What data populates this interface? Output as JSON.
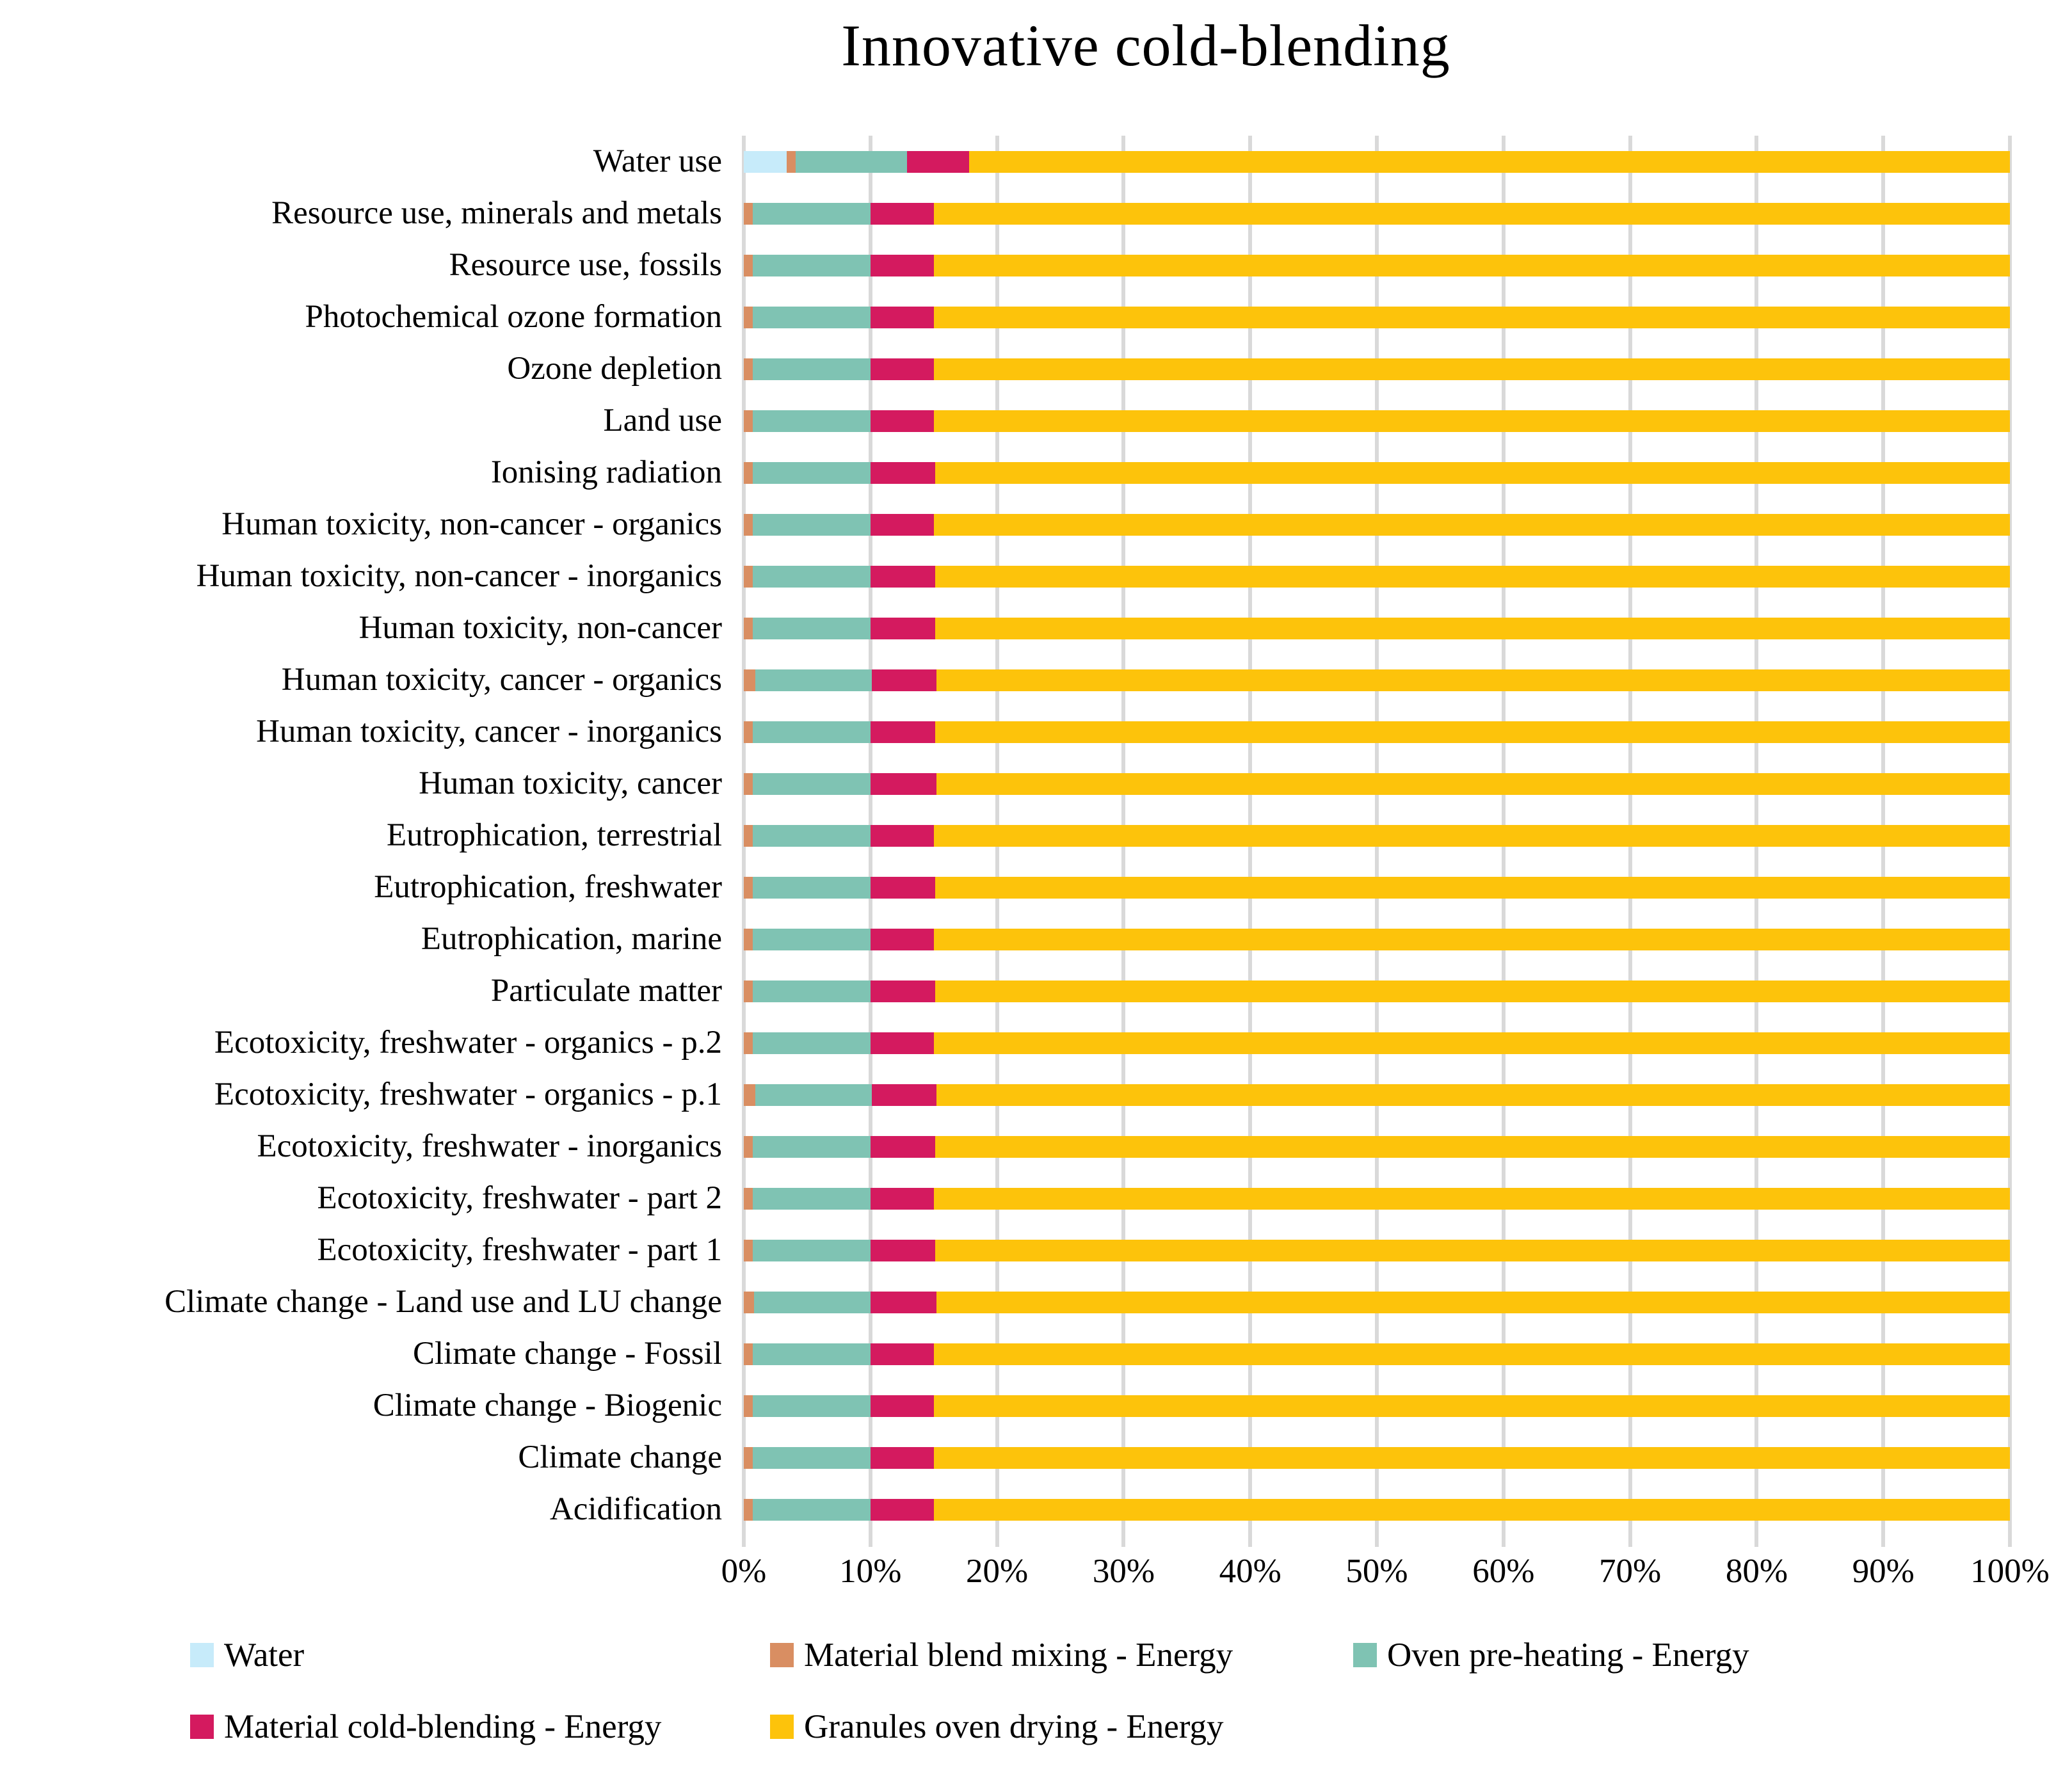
{
  "chart_data": {
    "type": "bar",
    "orientation": "horizontal",
    "stacked": true,
    "title": "Innovative cold-blending",
    "xlabel": "",
    "ylabel": "",
    "x_axis": {
      "range": [
        0,
        100
      ],
      "tick_step": 10,
      "tick_labels": [
        "0%",
        "10%",
        "20%",
        "30%",
        "40%",
        "50%",
        "60%",
        "70%",
        "80%",
        "90%",
        "100%"
      ]
    },
    "grid": "vertical-light-gray",
    "gridline_color": "#d9d9d9",
    "categories": [
      "Water use",
      "Resource use, minerals and metals",
      "Resource use, fossils",
      "Photochemical ozone formation",
      "Ozone depletion",
      "Land use",
      "Ionising radiation",
      "Human toxicity, non-cancer - organics",
      "Human toxicity, non-cancer - inorganics",
      "Human toxicity, non-cancer",
      "Human toxicity, cancer - organics",
      "Human toxicity, cancer - inorganics",
      "Human toxicity, cancer",
      "Eutrophication, terrestrial",
      "Eutrophication, freshwater",
      "Eutrophication, marine",
      "Particulate matter",
      "Ecotoxicity, freshwater - organics - p.2",
      "Ecotoxicity, freshwater - organics - p.1",
      "Ecotoxicity, freshwater - inorganics",
      "Ecotoxicity, freshwater - part 2",
      "Ecotoxicity, freshwater - part 1",
      "Climate change - Land use and LU change",
      "Climate change - Fossil",
      "Climate change - Biogenic",
      "Climate change",
      "Acidification"
    ],
    "series": [
      {
        "name": "Water",
        "color": "#c7ebfa",
        "values": [
          3.4,
          0,
          0,
          0,
          0,
          0,
          0,
          0,
          0,
          0,
          0,
          0,
          0,
          0,
          0,
          0,
          0,
          0,
          0,
          0,
          0,
          0,
          0,
          0,
          0,
          0,
          0
        ]
      },
      {
        "name": "Material blend mixing - Energy",
        "color": "#d98e62",
        "values": [
          0.7,
          0.7,
          0.7,
          0.7,
          0.7,
          0.7,
          0.7,
          0.7,
          0.7,
          0.7,
          0.9,
          0.7,
          0.7,
          0.7,
          0.7,
          0.7,
          0.7,
          0.7,
          0.9,
          0.7,
          0.7,
          0.7,
          0.8,
          0.7,
          0.7,
          0.7,
          0.7
        ]
      },
      {
        "name": "Oven pre-heating - Energy",
        "color": "#7fc3b3",
        "values": [
          8.8,
          9.3,
          9.3,
          9.3,
          9.3,
          9.3,
          9.3,
          9.3,
          9.3,
          9.3,
          9.2,
          9.3,
          9.3,
          9.3,
          9.3,
          9.3,
          9.3,
          9.3,
          9.2,
          9.3,
          9.3,
          9.3,
          9.2,
          9.3,
          9.3,
          9.3,
          9.3
        ]
      },
      {
        "name": "Material cold-blending - Energy",
        "color": "#d41a5f",
        "values": [
          4.9,
          5.0,
          5.0,
          5.0,
          5.0,
          5.0,
          5.1,
          5.0,
          5.1,
          5.1,
          5.1,
          5.1,
          5.2,
          5.0,
          5.1,
          5.0,
          5.1,
          5.0,
          5.1,
          5.1,
          5.0,
          5.1,
          5.2,
          5.0,
          5.0,
          5.0,
          5.0
        ]
      },
      {
        "name": "Granules oven drying - Energy",
        "color": "#fdc30b",
        "values": [
          82.2,
          85.0,
          85.0,
          85.0,
          85.0,
          85.0,
          84.9,
          85.0,
          84.9,
          84.9,
          84.8,
          84.9,
          84.8,
          85.0,
          84.9,
          85.0,
          84.9,
          85.0,
          84.8,
          84.9,
          85.0,
          84.9,
          84.8,
          85.0,
          85.0,
          85.0,
          85.0
        ]
      }
    ],
    "legend": {
      "position": "bottom-left",
      "rows": [
        [
          "Water",
          "Material blend mixing - Energy",
          "Oven pre-heating - Energy"
        ],
        [
          "Material cold-blending - Energy",
          "Granules oven drying - Energy"
        ]
      ]
    }
  }
}
